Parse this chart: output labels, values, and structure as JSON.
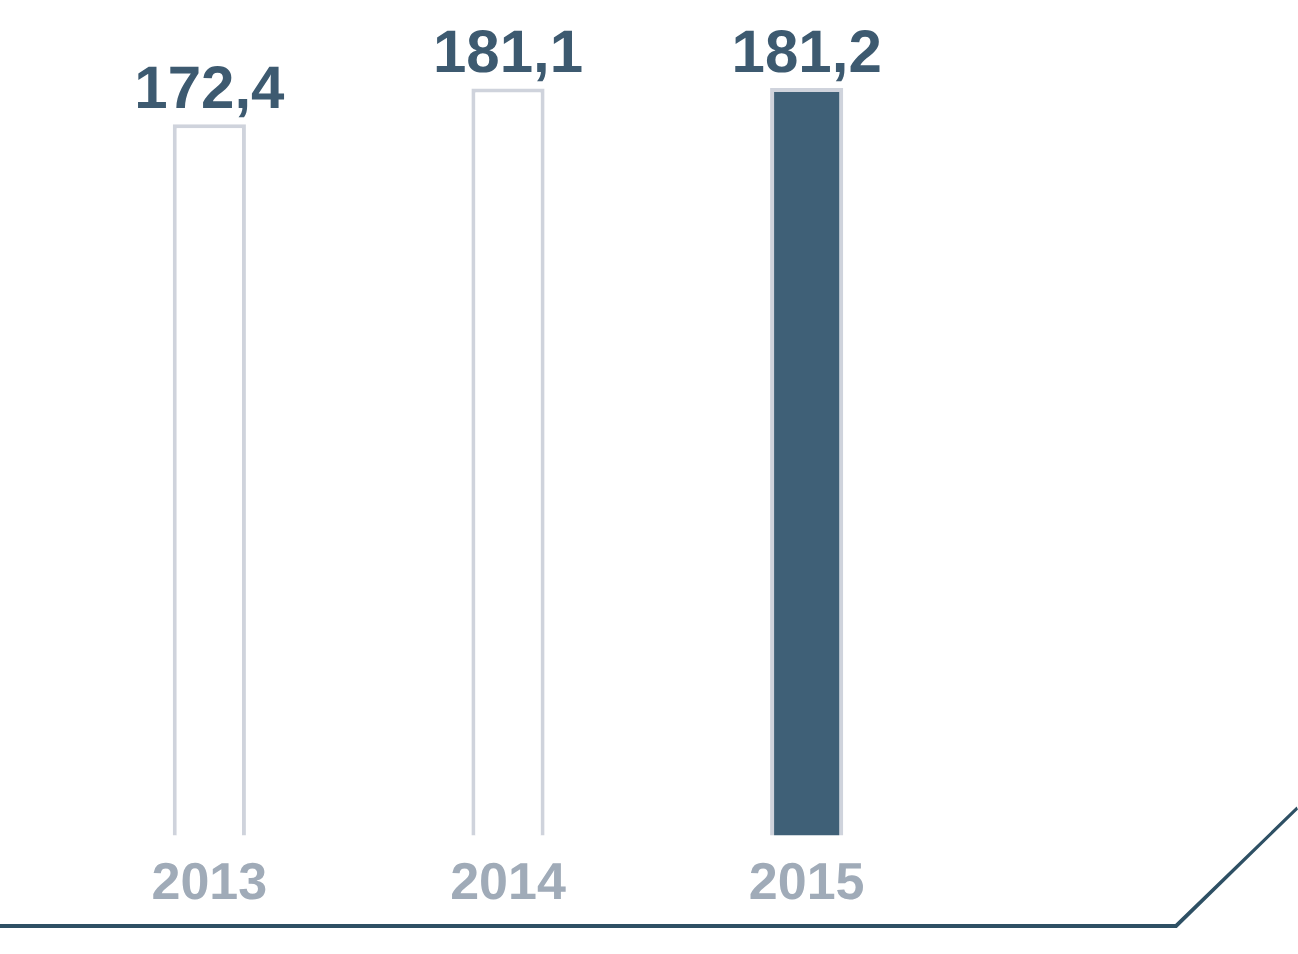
{
  "chart_data": {
    "type": "bar",
    "categories": [
      "2013",
      "2014",
      "2015"
    ],
    "values": [
      172.4,
      181.1,
      181.2
    ],
    "colors": [
      "#ffffff",
      "#ffffff",
      "#3f6077"
    ],
    "value_labels": [
      "172,4",
      "181,1",
      "181,2"
    ],
    "tick_labels": "x"
  }
}
